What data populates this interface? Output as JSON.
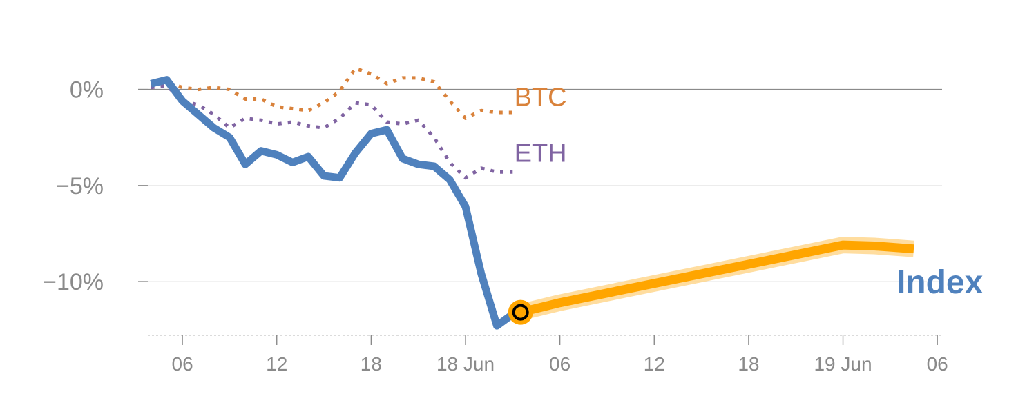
{
  "chart_data": {
    "type": "line",
    "colors": {
      "index": "#4f81bd",
      "btc": "#d9823b",
      "eth": "#8064a2",
      "forecast": "#ffa500",
      "forecast_halo": "#ffd27f",
      "grid": "#e6e6e6",
      "zero_line": "#8a8a8a",
      "tick_text": "#8a8a8a"
    },
    "y_axis": {
      "ylim": [
        -12.8,
        2.5
      ],
      "ticks": [
        {
          "value": 0,
          "label": "0%"
        },
        {
          "value": -5,
          "label": "−5%"
        },
        {
          "value": -10,
          "label": "−10%"
        }
      ]
    },
    "x_axis": {
      "units": "hours",
      "xlim": [
        -2.2,
        48.3
      ],
      "ticks": [
        {
          "value": 0,
          "label": "06"
        },
        {
          "value": 6,
          "label": "12"
        },
        {
          "value": 12,
          "label": "18"
        },
        {
          "value": 18,
          "label": "18 Jun"
        },
        {
          "value": 24,
          "label": "06"
        },
        {
          "value": 30,
          "label": "12"
        },
        {
          "value": 36,
          "label": "18"
        },
        {
          "value": 42,
          "label": "19 Jun"
        },
        {
          "value": 48,
          "label": "06"
        }
      ]
    },
    "series": [
      {
        "name": "BTC",
        "key": "btc",
        "style": "dotted",
        "x": [
          -2,
          -1,
          0,
          1,
          2,
          3,
          4,
          5,
          6,
          7,
          8,
          9,
          10,
          11,
          12,
          13,
          14,
          15,
          16,
          17,
          18,
          19,
          20,
          21
        ],
        "y": [
          0.2,
          0.4,
          0.1,
          0.0,
          0.1,
          0.0,
          -0.5,
          -0.5,
          -0.9,
          -1.0,
          -1.1,
          -0.7,
          -0.1,
          1.1,
          0.8,
          0.3,
          0.6,
          0.6,
          0.4,
          -0.6,
          -1.5,
          -1.1,
          -1.2,
          -1.2
        ]
      },
      {
        "name": "ETH",
        "key": "eth",
        "style": "dotted",
        "x": [
          -2,
          -1,
          0,
          1,
          2,
          3,
          4,
          5,
          6,
          7,
          8,
          9,
          10,
          11,
          12,
          13,
          14,
          15,
          16,
          17,
          18,
          19,
          20,
          21
        ],
        "y": [
          0.1,
          0.2,
          -0.6,
          -0.8,
          -1.3,
          -2.0,
          -1.5,
          -1.6,
          -1.8,
          -1.7,
          -1.9,
          -2.0,
          -1.5,
          -0.7,
          -0.8,
          -1.7,
          -1.8,
          -1.6,
          -2.5,
          -3.8,
          -4.6,
          -4.1,
          -4.3,
          -4.3
        ]
      },
      {
        "name": "Index",
        "key": "index",
        "style": "solid",
        "x": [
          -2,
          -1,
          0,
          1,
          2,
          3,
          4,
          5,
          6,
          7,
          8,
          9,
          10,
          11,
          12,
          13,
          14,
          15,
          16,
          17,
          18,
          19,
          20,
          21
        ],
        "y": [
          0.3,
          0.5,
          -0.6,
          -1.3,
          -2.0,
          -2.5,
          -3.9,
          -3.2,
          -3.4,
          -3.8,
          -3.5,
          -4.5,
          -4.6,
          -3.3,
          -2.3,
          -2.1,
          -3.6,
          -3.9,
          -4.0,
          -4.7,
          -6.1,
          -9.6,
          -12.3,
          -11.7
        ]
      },
      {
        "key": "forecast",
        "style": "thick",
        "x": [
          21.5,
          24,
          27,
          30,
          33,
          36,
          39,
          42,
          44,
          46.5
        ],
        "y": [
          -11.6,
          -11.1,
          -10.6,
          -10.1,
          -9.6,
          -9.1,
          -8.6,
          -8.1,
          -8.15,
          -8.3
        ]
      }
    ],
    "labels": [
      {
        "text": "BTC",
        "key": "btc",
        "x": 21.1,
        "y": -0.4
      },
      {
        "text": "ETH",
        "key": "eth",
        "x": 21.1,
        "y": -3.3
      },
      {
        "text": "Index",
        "key": "index",
        "x": 45.4,
        "y": -10.0
      }
    ],
    "marker": {
      "x": 21.5,
      "y": -11.6
    },
    "grid": true,
    "legend": "none"
  }
}
